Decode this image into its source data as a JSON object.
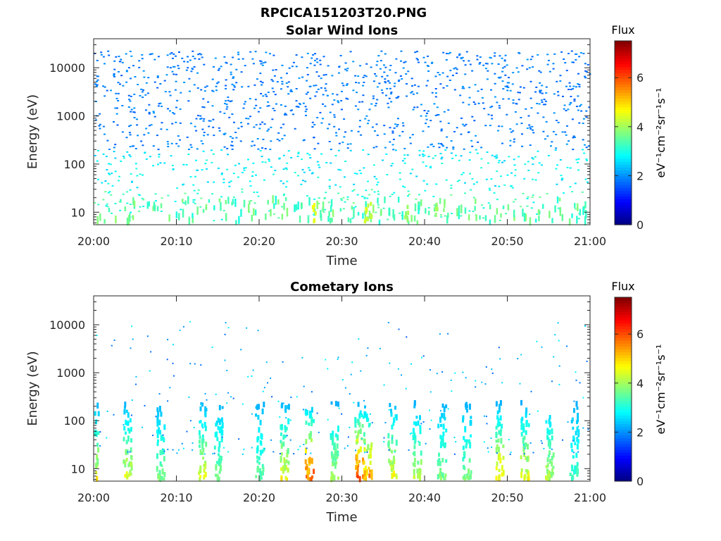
{
  "figure_title": "RPCICA151203T20.PNG",
  "chart_data": [
    {
      "type": "heatmap",
      "title": "Solar Wind Ions",
      "xlabel": "Time",
      "ylabel": "Energy (eV)",
      "y_scale": "log",
      "xlim": [
        "20:00",
        "21:00"
      ],
      "ylim": [
        5.5,
        40000
      ],
      "x_ticks": [
        "20:00",
        "20:10",
        "20:20",
        "20:30",
        "20:40",
        "20:50",
        "21:00"
      ],
      "y_ticks": [
        10,
        100,
        1000,
        10000
      ],
      "y_tick_labels": [
        "10",
        "100",
        "1000",
        "10000"
      ],
      "colorbar": {
        "title": "Flux",
        "label": "eV⁻¹cm⁻²sr⁻¹s⁻¹",
        "range": [
          0,
          7.5
        ],
        "ticks": [
          "0",
          "2",
          "4",
          "6"
        ],
        "colormap": "jet"
      },
      "pattern": "sparse scatter of flux values ~1.5–3 across all energies 10–20000 eV; low-energy (<100 eV) cells slightly higher (~2.5–3.5); occasional hotter streaks near 20:26 and 20:32–20:33 at 10–20 eV (~4–4.5)"
    },
    {
      "type": "heatmap",
      "title": "Cometary Ions",
      "xlabel": "Time",
      "ylabel": "Energy (eV)",
      "y_scale": "log",
      "xlim": [
        "20:00",
        "21:00"
      ],
      "ylim": [
        5.5,
        40000
      ],
      "x_ticks": [
        "20:00",
        "20:10",
        "20:20",
        "20:30",
        "20:40",
        "20:50",
        "21:00"
      ],
      "y_ticks": [
        10,
        100,
        1000,
        10000
      ],
      "y_tick_labels": [
        "10",
        "100",
        "1000",
        "10000"
      ],
      "colorbar": {
        "title": "Flux",
        "label": "eV⁻¹cm⁻²sr⁻¹s⁻¹",
        "range": [
          0,
          7.5
        ],
        "ticks": [
          "0",
          "2",
          "4",
          "6"
        ],
        "colormap": "jet"
      },
      "pattern": "vertical bursts at low energies (6–300 eV) roughly every 2–4 minutes; strongest bursts at 20:26 and 20:32–20:33 reaching ~6–7 at 10–20 eV; sparse high-energy points up to ~10000 eV",
      "bursts": [
        {
          "t": "20:00",
          "peak": 5.0
        },
        {
          "t": "20:04",
          "peak": 4.8
        },
        {
          "t": "20:08",
          "peak": 4.0
        },
        {
          "t": "20:13",
          "peak": 4.8
        },
        {
          "t": "20:15",
          "peak": 4.0
        },
        {
          "t": "20:20",
          "peak": 3.8
        },
        {
          "t": "20:23",
          "peak": 5.0
        },
        {
          "t": "20:26",
          "peak": 6.5
        },
        {
          "t": "20:29",
          "peak": 4.5
        },
        {
          "t": "20:32",
          "peak": 7.0
        },
        {
          "t": "20:33",
          "peak": 6.0
        },
        {
          "t": "20:36",
          "peak": 5.0
        },
        {
          "t": "20:39",
          "peak": 4.5
        },
        {
          "t": "20:42",
          "peak": 4.0
        },
        {
          "t": "20:45",
          "peak": 4.0
        },
        {
          "t": "20:49",
          "peak": 5.5
        },
        {
          "t": "20:52",
          "peak": 5.0
        },
        {
          "t": "20:55",
          "peak": 4.5
        },
        {
          "t": "20:58",
          "peak": 3.5
        }
      ]
    }
  ]
}
